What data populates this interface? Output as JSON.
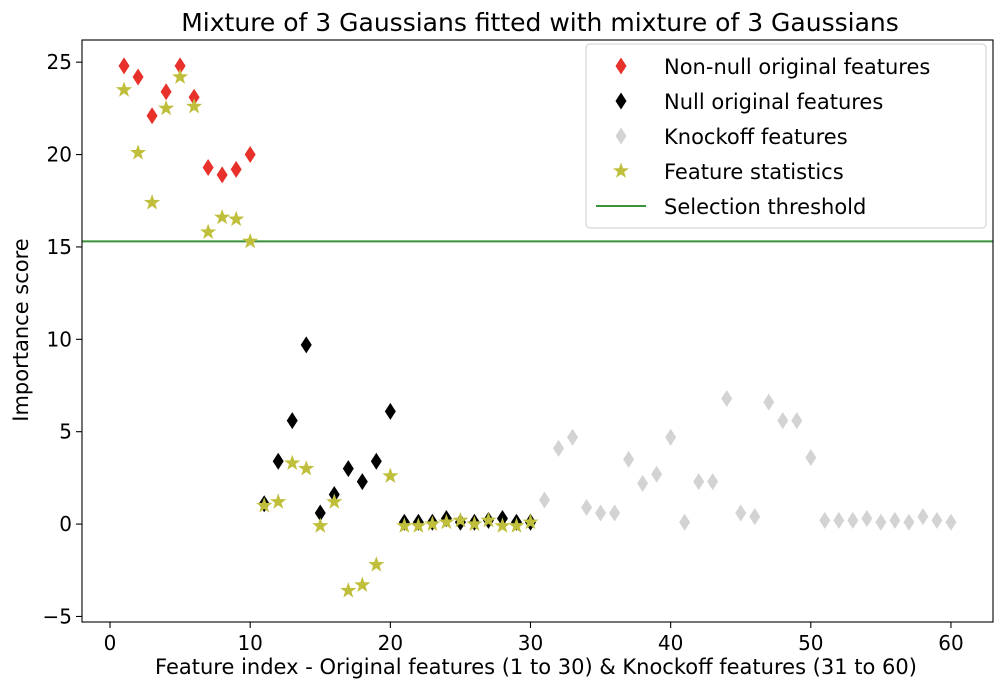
{
  "chart_data": {
    "type": "scatter",
    "title": "Mixture of 3 Gaussians fitted with mixture of 3 Gaussians",
    "xlabel": "Feature index - Original features (1 to 30) & Knockoff features (31 to 60)",
    "ylabel": "Importance score",
    "xlim": [
      -2,
      63
    ],
    "ylim": [
      -5.3,
      26.2
    ],
    "xticks": [
      0,
      10,
      20,
      30,
      40,
      50,
      60
    ],
    "xtick_labels": [
      "0",
      "10",
      "20",
      "30",
      "40",
      "50",
      "60"
    ],
    "yticks": [
      -5,
      0,
      5,
      10,
      15,
      20,
      25
    ],
    "ytick_labels": [
      "−5",
      "0",
      "5",
      "10",
      "15",
      "20",
      "25"
    ],
    "grid": false,
    "legend_position": "top-right",
    "threshold": {
      "name": "Selection threshold",
      "value": 15.3,
      "color": "#3a923a"
    },
    "series": [
      {
        "name": "Non-null original features",
        "marker": "diamond",
        "color": "#e8312a",
        "x": [
          1,
          2,
          3,
          4,
          5,
          6,
          7,
          8,
          9,
          10
        ],
        "y": [
          24.8,
          24.2,
          22.1,
          23.4,
          24.8,
          23.1,
          19.3,
          18.9,
          19.2,
          20.0
        ]
      },
      {
        "name": "Null original features",
        "marker": "diamond",
        "color": "#000000",
        "x": [
          11,
          12,
          13,
          14,
          15,
          16,
          17,
          18,
          19,
          20,
          21,
          22,
          23,
          24,
          25,
          26,
          27,
          28,
          29,
          30
        ],
        "y": [
          1.1,
          3.4,
          5.6,
          9.7,
          0.6,
          1.6,
          3.0,
          2.3,
          3.4,
          6.1,
          0.1,
          0.1,
          0.1,
          0.3,
          0.1,
          0.1,
          0.2,
          0.3,
          0.1,
          0.1
        ]
      },
      {
        "name": "Knockoff features",
        "marker": "diamond",
        "color": "#d3d3d3",
        "x": [
          31,
          32,
          33,
          34,
          35,
          36,
          37,
          38,
          39,
          40,
          41,
          42,
          43,
          44,
          45,
          46,
          47,
          48,
          49,
          50,
          51,
          52,
          53,
          54,
          55,
          56,
          57,
          58,
          59,
          60
        ],
        "y": [
          1.3,
          4.1,
          4.7,
          0.9,
          0.6,
          0.6,
          3.5,
          2.2,
          2.7,
          4.7,
          0.1,
          2.3,
          2.3,
          6.8,
          0.6,
          0.4,
          6.6,
          5.6,
          5.6,
          3.6,
          0.2,
          0.2,
          0.2,
          0.3,
          0.1,
          0.2,
          0.1,
          0.4,
          0.2,
          0.1
        ]
      },
      {
        "name": "Feature statistics",
        "marker": "star",
        "color": "#c0bf3c",
        "x": [
          1,
          2,
          3,
          4,
          5,
          6,
          7,
          8,
          9,
          10,
          11,
          12,
          13,
          14,
          15,
          16,
          17,
          18,
          19,
          20,
          21,
          22,
          23,
          24,
          25,
          26,
          27,
          28,
          29,
          30
        ],
        "y": [
          23.5,
          20.1,
          17.4,
          22.5,
          24.2,
          22.6,
          15.8,
          16.6,
          16.5,
          15.3,
          1.0,
          1.2,
          3.3,
          3.0,
          -0.1,
          1.2,
          -3.6,
          -3.3,
          -2.2,
          2.6,
          -0.1,
          -0.1,
          0.0,
          0.1,
          0.2,
          0.0,
          0.2,
          -0.1,
          -0.1,
          0.1
        ]
      }
    ]
  }
}
